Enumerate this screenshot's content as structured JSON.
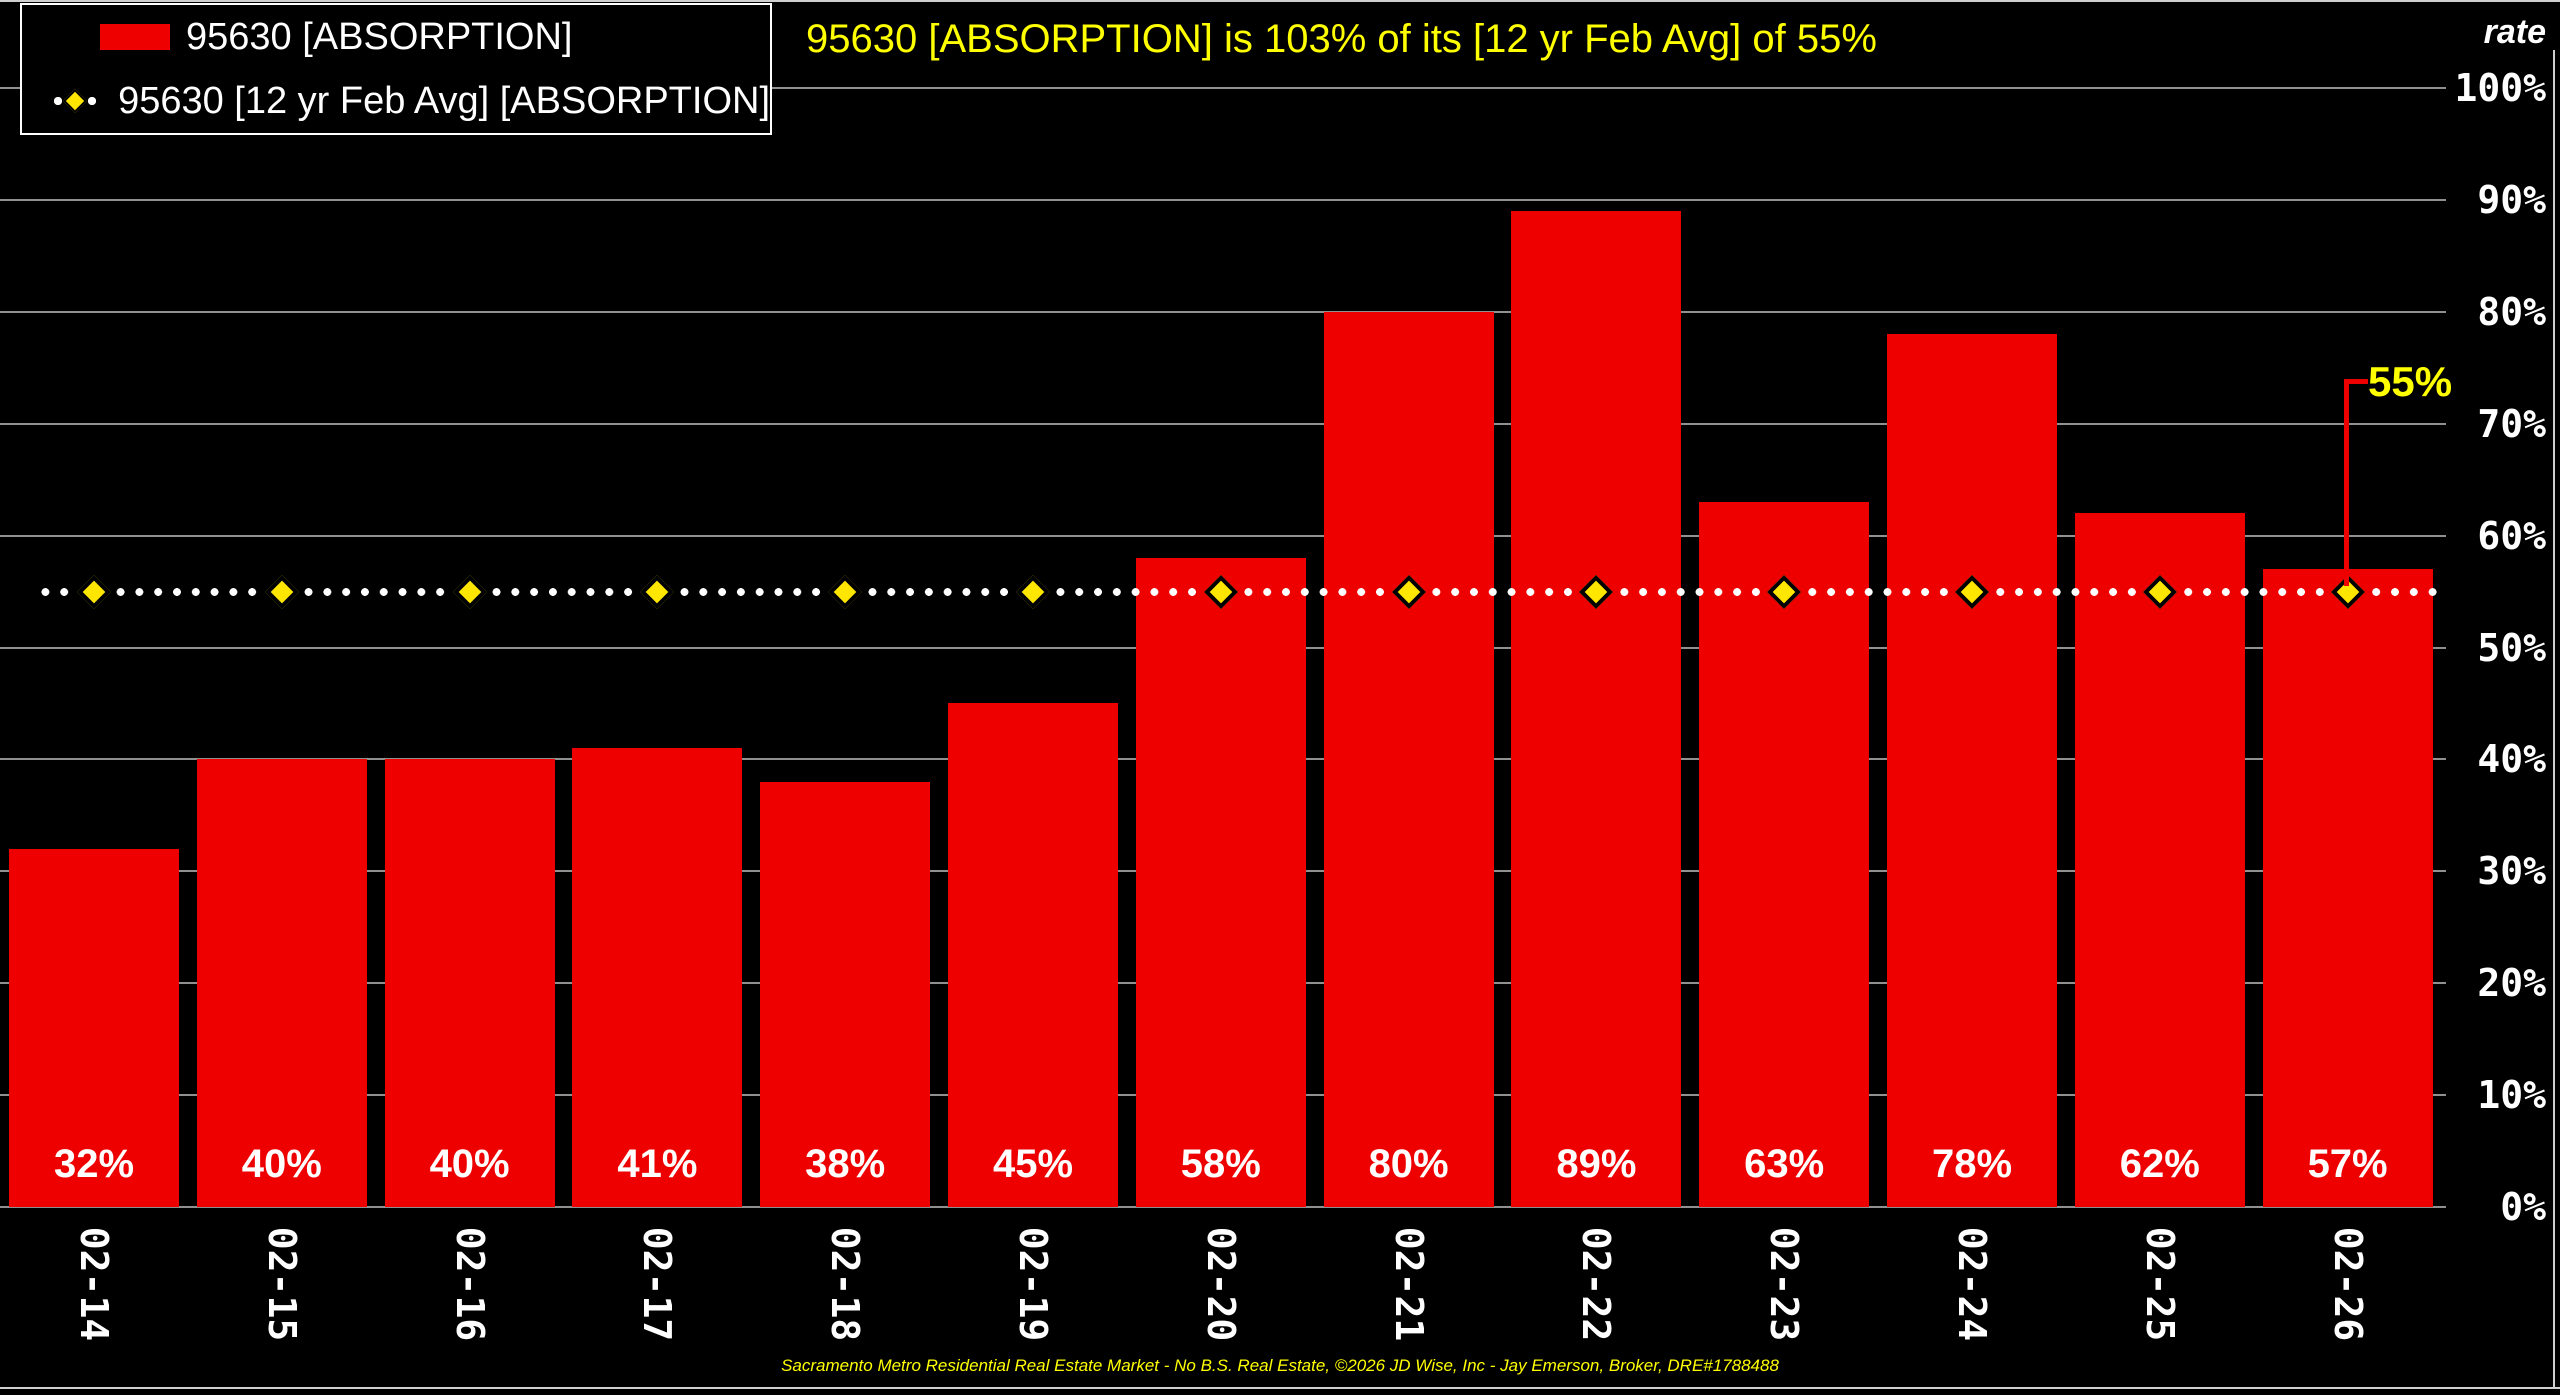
{
  "header": {
    "title": "95630 [ABSORPTION] is 103% of its [12 yr Feb Avg] of 55%",
    "axis_label": "rate"
  },
  "legend": {
    "items": [
      {
        "label": "95630 [ABSORPTION]",
        "marker": "red-bar-swatch"
      },
      {
        "label": "95630 [12 yr Feb Avg] [ABSORPTION]",
        "marker": "dotted-line-yellow-diamond"
      }
    ]
  },
  "chart_data": {
    "type": "bar",
    "title": "95630 [ABSORPTION] is 103% of its [12 yr Feb Avg] of 55%",
    "categories": [
      "02-14",
      "02-15",
      "02-16",
      "02-17",
      "02-18",
      "02-19",
      "02-20",
      "02-21",
      "02-22",
      "02-23",
      "02-24",
      "02-25",
      "02-26"
    ],
    "series": [
      {
        "name": "95630 [ABSORPTION]",
        "type": "bar",
        "values": [
          32,
          40,
          40,
          41,
          38,
          45,
          58,
          80,
          89,
          63,
          78,
          62,
          57
        ]
      },
      {
        "name": "95630 [12 yr Feb Avg] [ABSORPTION]",
        "type": "dotted-line",
        "constant_value": 55,
        "marker": "yellow-diamond"
      }
    ],
    "value_unit": "%",
    "ylabel": "rate",
    "ylim": [
      0,
      100
    ],
    "ytick_step": 10,
    "grid": true,
    "legend_position": "top-left",
    "annotation": {
      "text": "55%",
      "value": 55
    }
  },
  "footer": {
    "credit": "Sacramento Metro Residential Real Estate Market - No B.S. Real Estate, ©2026 JD Wise, Inc - Jay Emerson, Broker, DRE#1788488"
  },
  "colors": {
    "background": "#000000",
    "bar": "#ee0000",
    "bar_label": "#ffffff",
    "grid": "#909090",
    "frame": "#cfcfcf",
    "avg_line": "#ffffff",
    "diamond_fill": "#ffe600",
    "diamond_border": "#000000",
    "accent_yellow": "#ffff00",
    "callout_line": "#ee0000",
    "axis_text": "#ffffff"
  }
}
